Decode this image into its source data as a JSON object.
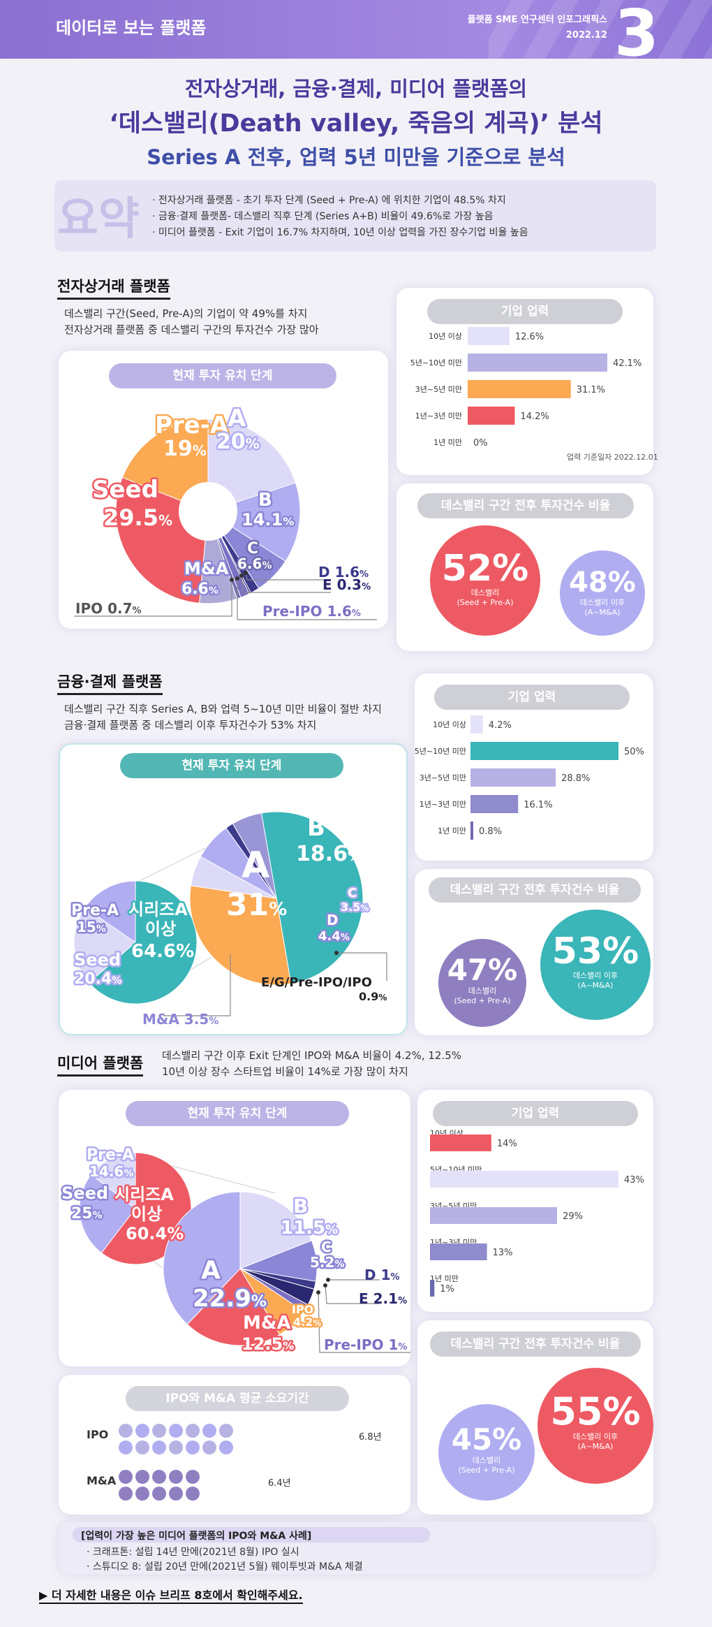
{
  "header": {
    "title": "데이터로 보는 플랫폼",
    "org": "플랫폼 SME 연구센터 인포그래픽스",
    "date": "2022.12",
    "issue_no": "3"
  },
  "titles": {
    "line1": "전자상거래, 금융·결제, 미디어 플랫폼의",
    "line2": "‘데스밸리(Death valley, 죽음의 계곡)’ 분석",
    "line3": "Series A 전후, 업력 5년 미만을 기준으로 분석"
  },
  "summary": {
    "word": "요약",
    "items": [
      "· 전자상거래 플랫폼  -  초기 투자 단계 (Seed + Pre-A) 에 위치한 기업이 48.5% 차지",
      "· 금융·결제 플랫폼- 데스밸리 직후 단계 (Series A+B) 비율이 49.6%로 가장 높음",
      "· 미디어 플랫폼  -  Exit 기업이 16.7% 차지하며, 10년 이상 업력을 가진 장수기업 비율 높음"
    ]
  },
  "labels": {
    "pie_title": "현재 투자 유치 단계",
    "age_title": "기업 업력",
    "ratio_title": "데스밸리 구간 전후 투자건수 비율",
    "ratio_before": "데스밸리",
    "ratio_before_sub": "(Seed + Pre-A)",
    "ratio_after": "데스밸리 이후",
    "ratio_after_sub": "(A~M&A)",
    "age_date_note": "업력 기준일자 2022.12.01"
  },
  "ecommerce": {
    "title": "전자상거래 플랫폼",
    "desc": [
      "데스밸리 구간(Seed, Pre-A)의 기업이 약 49%를 차지",
      "전자상거래 플랫폼 중 데스밸리 구간의 투자건수 가장 많아"
    ],
    "ratio": {
      "before": "52%",
      "after": "48%"
    }
  },
  "finance": {
    "title": "금융·결제 플랫폼",
    "desc": [
      "데스밸리 구간 직후 Series A, B와 업력 5~10년 미만 비율이 절반 차지",
      "금융·결제 플랫폼 중 데스밸리 이후 투자건수가 53% 차지"
    ],
    "ratio": {
      "before": "47%",
      "after": "53%"
    },
    "group_label": [
      "시리즈A",
      "이상"
    ],
    "group_value": "64.6%"
  },
  "media": {
    "title": "미디어 플랫폼",
    "desc": [
      "데스밸리 구간 이후 Exit 단계인 IPO와 M&A 비율이 4.2%, 12.5%",
      "10년 이상 장수 스타트업 비율이 14%로 가장 많이 차지"
    ],
    "ratio": {
      "before": "45%",
      "after": "55%"
    },
    "group_label": [
      "시리즈A",
      "이상"
    ],
    "group_value": "60.4%",
    "exit_title": "IPO와 M&A 평균 소요기간",
    "exit_rows": [
      {
        "label": "IPO",
        "value": "6.8년",
        "dots": 14
      },
      {
        "label": "M&A",
        "value": "6.4년",
        "dots": 10
      }
    ],
    "cases_title": "[업력이 가장 높은 미디어 플랫폼의 IPO와 M&A 사례]",
    "cases": [
      "· 크래프톤: 설립 14년 만에(2021년 8월) IPO 실시",
      "· 스튜디오 8: 설립 20년 만에(2021년 5월) 웨이투빗과 M&A 체결"
    ]
  },
  "footer": "▶ 더 자세한 내용은 이슈 브리프 8호에서 확인해주세요.",
  "chart_data": [
    {
      "type": "pie",
      "title": "현재 투자 유치 단계",
      "categories": [
        "A",
        "B",
        "C",
        "D",
        "E",
        "Pre-IPO",
        "IPO",
        "M&A",
        "Seed",
        "Pre-A"
      ],
      "values": [
        20,
        14.1,
        6.6,
        1.6,
        0.3,
        1.6,
        0.7,
        6.6,
        29.5,
        19
      ],
      "colors": [
        "#dcdaf7",
        "#b1adf1",
        "#8b86d6",
        "#3c3a8a",
        "#2a2870",
        "#7b6fc4",
        "#6e6ab0",
        "#aeaad8",
        "#ee5a63",
        "#fba953"
      ]
    },
    {
      "type": "bar",
      "title": "기업 업력",
      "categories": [
        "10년 이상",
        "5년~10년 미만",
        "3년~5년 미만",
        "1년~3년 미만",
        "1년 미만"
      ],
      "values": [
        12.6,
        42.1,
        31.1,
        14.2,
        0
      ],
      "value_labels": [
        "12.6%",
        "42.1%",
        "31.1%",
        "14.2%",
        "0%"
      ],
      "colors": [
        "#e4e2f8",
        "#b6b2e4",
        "#fba953",
        "#ee5a63",
        "#6e6ab0"
      ]
    },
    {
      "type": "pie",
      "title": "현재 투자 유치 단계",
      "categories": [
        "A",
        "B",
        "C",
        "D",
        "E/G/Pre-IPO/IPO",
        "M&A",
        "Seed",
        "Pre-A"
      ],
      "values": [
        31,
        18.6,
        3.5,
        4.4,
        0.9,
        3.5,
        20.4,
        15
      ],
      "colors": [
        "#3ab5b8",
        "#fba953",
        "#dcdaf7",
        "#b1adf1",
        "#3c3a8a",
        "#9a96d6",
        "#dcdaf7",
        "#b1adf1"
      ]
    },
    {
      "type": "bar",
      "title": "기업 업력",
      "categories": [
        "10년 이상",
        "5년~10년 미만",
        "3년~5년 미만",
        "1년~3년 미만",
        "1년 미만"
      ],
      "values": [
        4.2,
        50,
        28.8,
        16.1,
        0.8
      ],
      "value_labels": [
        "4.2%",
        "50%",
        "28.8%",
        "16.1%",
        "0.8%"
      ],
      "colors": [
        "#e4e2f8",
        "#3ab5b8",
        "#b6b2e4",
        "#8f8bcc",
        "#6e6ab0"
      ]
    },
    {
      "type": "pie",
      "title": "현재 투자 유치 단계",
      "categories": [
        "A",
        "B",
        "C",
        "D",
        "E",
        "Pre-IPO",
        "IPO",
        "M&A",
        "Seed",
        "Pre-A"
      ],
      "values": [
        22.9,
        11.5,
        5.2,
        1,
        2.1,
        1,
        4.2,
        12.5,
        25,
        14.6
      ],
      "colors": [
        "#b1adf1",
        "#dcdaf7",
        "#8b86d6",
        "#3c3a8a",
        "#2a2870",
        "#7b6fc4",
        "#fba953",
        "#ee5a63",
        "#b1adf1",
        "#dcdaf7"
      ]
    },
    {
      "type": "bar",
      "title": "기업 업력",
      "categories": [
        "10년 이상",
        "5년~10년 미만",
        "3년~5년 미만",
        "1년~3년 미만",
        "1년 미만"
      ],
      "values": [
        14,
        43,
        29,
        13,
        1
      ],
      "value_labels": [
        "14%",
        "43%",
        "29%",
        "13%",
        "1%"
      ],
      "colors": [
        "#ee5a63",
        "#e4e2f8",
        "#b6b2e4",
        "#8f8bcc",
        "#6e6ab0"
      ]
    }
  ]
}
